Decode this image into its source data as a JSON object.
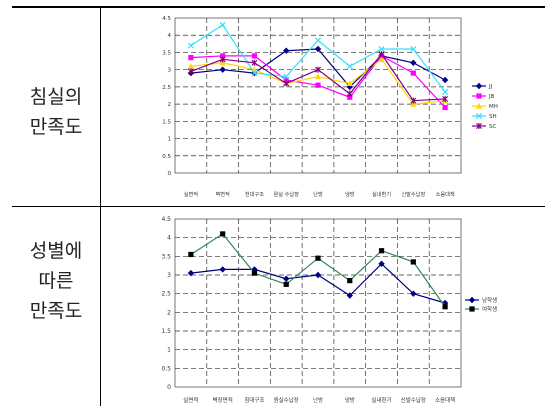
{
  "row1": {
    "label_lines": [
      "침실의",
      "만족도"
    ]
  },
  "row2": {
    "label_lines": [
      "성별에",
      "따른",
      "만족도"
    ]
  },
  "chart_data": [
    {
      "type": "line",
      "categories": [
        "실면적",
        "벽면적",
        "천대구조",
        "원실 수납장",
        "난방",
        "냉방",
        "실내환기",
        "신발수납장",
        "소음대책"
      ],
      "ylim": [
        0,
        4.5
      ],
      "yticks": [
        0,
        0.5,
        1,
        1.5,
        2,
        2.5,
        3,
        3.5,
        4,
        4.5
      ],
      "grid": true,
      "legend": "right",
      "series": [
        {
          "name": "JJ",
          "color": "#000080",
          "marker": "diamond",
          "values": [
            2.9,
            3.0,
            2.9,
            3.55,
            3.6,
            2.5,
            3.4,
            3.2,
            2.7
          ]
        },
        {
          "name": "JB",
          "color": "#ff00ff",
          "marker": "square",
          "values": [
            3.35,
            3.4,
            3.4,
            2.7,
            2.55,
            2.2,
            3.4,
            2.9,
            1.9
          ]
        },
        {
          "name": "MH",
          "color": "#ffd700",
          "marker": "triangle",
          "values": [
            3.1,
            3.2,
            3.0,
            2.6,
            2.8,
            2.6,
            3.3,
            2.0,
            2.1
          ]
        },
        {
          "name": "SH",
          "color": "#33e0ff",
          "marker": "x",
          "values": [
            3.7,
            4.3,
            2.9,
            2.8,
            3.85,
            3.1,
            3.6,
            3.6,
            2.35
          ]
        },
        {
          "name": "SC",
          "color": "#800080",
          "marker": "star",
          "values": [
            2.95,
            3.3,
            3.2,
            2.6,
            3.0,
            2.3,
            3.45,
            2.1,
            2.15
          ]
        }
      ]
    },
    {
      "type": "line",
      "categories": [
        "실면적",
        "벽장면적",
        "침대구조",
        "원실수납장",
        "난방",
        "냉방",
        "실내환기",
        "신발수납장",
        "소음대책"
      ],
      "ylim": [
        0,
        4.5
      ],
      "yticks": [
        0,
        0.5,
        1,
        1.5,
        2,
        2.5,
        3,
        3.5,
        4,
        4.5
      ],
      "grid": true,
      "legend": "right",
      "series": [
        {
          "name": "남학생",
          "color": "#000080",
          "marker": "diamond",
          "values": [
            3.05,
            3.15,
            3.15,
            2.9,
            3.0,
            2.45,
            3.3,
            2.5,
            2.25
          ]
        },
        {
          "name": "여학생",
          "color": "#2e8b57",
          "markerColor": "#000000",
          "marker": "square",
          "values": [
            3.55,
            4.1,
            3.05,
            2.75,
            3.45,
            2.85,
            3.65,
            3.35,
            2.15
          ]
        }
      ]
    }
  ]
}
